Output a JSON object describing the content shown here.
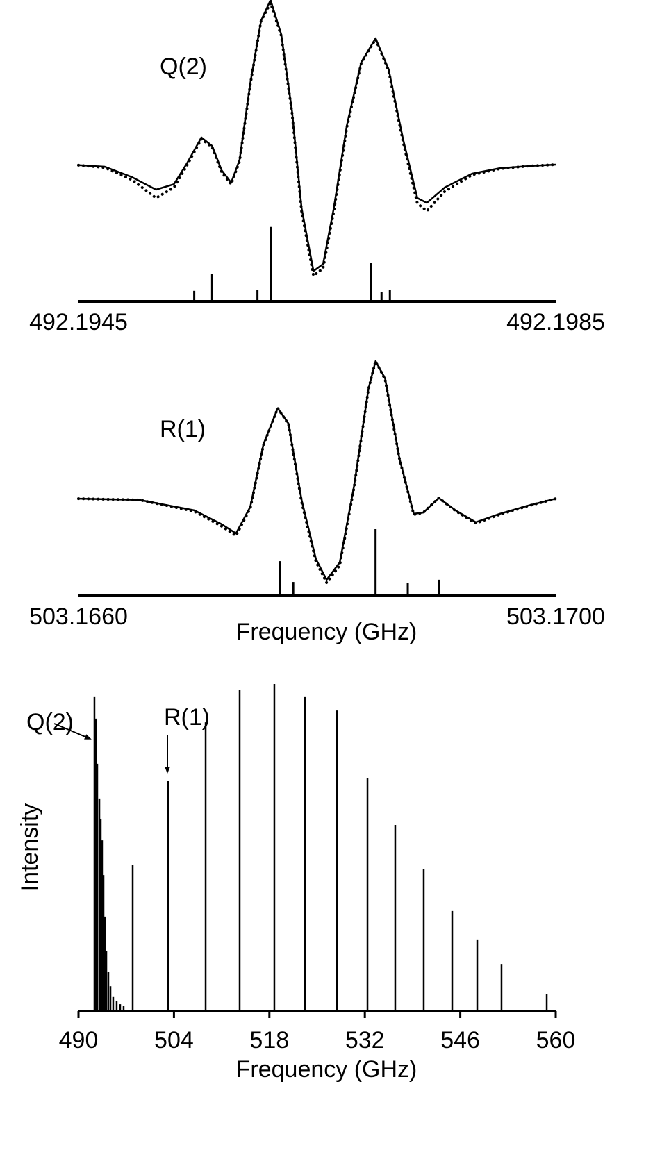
{
  "chart_data": [
    {
      "type": "spectrum",
      "label": "Q(2)",
      "x": [
        492.1945,
        492.19472,
        492.19495,
        492.19515,
        492.1953,
        492.19541,
        492.19553,
        492.19562,
        492.1957,
        492.19578,
        492.19585,
        492.19594,
        492.19603,
        492.19611,
        492.1962,
        492.19629,
        492.19637,
        492.19647,
        492.19655,
        492.19664,
        492.19675,
        492.19687,
        492.19699,
        492.1971,
        492.19722,
        492.19734,
        492.19742,
        492.19757,
        492.1978,
        492.19803,
        492.19827,
        492.1985
      ],
      "series": [
        {
          "style": "solid",
          "color": "#000000",
          "values": [
            45.2,
            44.7,
            41.2,
            37.1,
            38.9,
            45.9,
            54.4,
            51.6,
            43.5,
            39.4,
            47.0,
            72.4,
            93.1,
            100,
            88.5,
            63.1,
            30.9,
            10.1,
            12.4,
            30.9,
            58.5,
            79.3,
            87.3,
            77.0,
            53.9,
            34.3,
            32.7,
            37.8,
            42.4,
            44.2,
            44.9,
            45.4
          ]
        },
        {
          "style": "dotted",
          "color": "#000000",
          "values": [
            45.2,
            44.4,
            40.3,
            34.3,
            37.8,
            45.2,
            53.9,
            51.2,
            42.8,
            38.9,
            46.5,
            72.0,
            93.0,
            99.0,
            88.0,
            62.5,
            29.8,
            8.5,
            11.0,
            29.8,
            57.8,
            79.0,
            87.0,
            76.5,
            53.0,
            32.5,
            30.0,
            36.5,
            42.0,
            44.0,
            44.9,
            45.4
          ]
        }
      ],
      "sticks": {
        "x": [
          492.19547,
          492.19562,
          492.196,
          492.19611,
          492.19695,
          492.19704,
          492.19711
        ],
        "values": [
          3.5,
          9.0,
          3.9,
          24.7,
          12.9,
          3.2,
          3.7
        ]
      },
      "xlim": [
        492.1945,
        492.1985
      ],
      "xticks": [
        492.1945,
        492.1985
      ],
      "ylim": [
        0,
        100
      ]
    },
    {
      "type": "spectrum",
      "label": "R(1)",
      "xlabel": "Frequency (GHz)",
      "x": [
        503.166,
        503.16651,
        503.16697,
        503.1672,
        503.16732,
        503.16744,
        503.16755,
        503.16767,
        503.16776,
        503.16787,
        503.16799,
        503.16808,
        503.16819,
        503.16831,
        503.16843,
        503.16849,
        503.16857,
        503.16869,
        503.16881,
        503.16889,
        503.16902,
        503.16916,
        503.16933,
        503.16953,
        503.16977,
        503.17
      ],
      "series": [
        {
          "style": "solid",
          "color": "#000000",
          "values": [
            38.9,
            38.4,
            34.2,
            28.6,
            24.9,
            35.6,
            60.8,
            75.4,
            69.2,
            38.4,
            14.6,
            6.2,
            13.2,
            44.0,
            83.2,
            94.4,
            87.4,
            55.2,
            32.8,
            33.3,
            39.2,
            34.2,
            29.4,
            32.8,
            36.1,
            38.9
          ]
        },
        {
          "style": "dotted",
          "color": "#000000",
          "values": [
            38.9,
            38.4,
            33.8,
            27.8,
            24.0,
            35.0,
            60.5,
            75.4,
            69.0,
            37.5,
            13.5,
            5.0,
            12.0,
            43.5,
            83.0,
            94.4,
            87.0,
            55.0,
            32.5,
            33.3,
            39.2,
            34.0,
            29.0,
            32.5,
            36.0,
            38.9
          ]
        }
      ],
      "sticks": {
        "x": [
          503.16769,
          503.1678,
          503.16849,
          503.16876,
          503.16902
        ],
        "values": [
          13.7,
          5.3,
          26.6,
          4.8,
          6.2
        ]
      },
      "xlim": [
        503.166,
        503.17
      ],
      "xticks": [
        {
          "value": 503.166,
          "label": "503.1660"
        },
        {
          "value": 503.17,
          "label": "503.1700"
        }
      ],
      "ylim": [
        0,
        100
      ]
    },
    {
      "type": "sticks",
      "xlabel": "Frequency  (GHz)",
      "ylabel": "Intensity",
      "annotations": [
        "Q(2)",
        "R(1)"
      ],
      "x": [
        492.34,
        492.55,
        492.75,
        493.06,
        493.26,
        493.46,
        493.67,
        493.87,
        494.08,
        494.38,
        494.69,
        495.09,
        495.6,
        496.11,
        496.62,
        497.95,
        503.17,
        508.65,
        513.64,
        518.73,
        523.22,
        527.91,
        532.39,
        536.46,
        540.64,
        544.82,
        548.49,
        552.05,
        558.68
      ],
      "values": [
        96.2,
        89.4,
        75.6,
        65.0,
        58.6,
        52.2,
        41.6,
        28.9,
        18.3,
        11.9,
        7.6,
        4.5,
        3.0,
        2.1,
        1.7,
        44.8,
        70.3,
        88.3,
        98.3,
        100,
        96.2,
        91.9,
        71.3,
        56.9,
        43.3,
        30.6,
        21.9,
        14.4,
        5.1
      ],
      "xlim": [
        490,
        560
      ],
      "xticks": [
        490,
        504,
        518,
        532,
        546,
        560
      ],
      "ylim": [
        0,
        100
      ]
    }
  ]
}
